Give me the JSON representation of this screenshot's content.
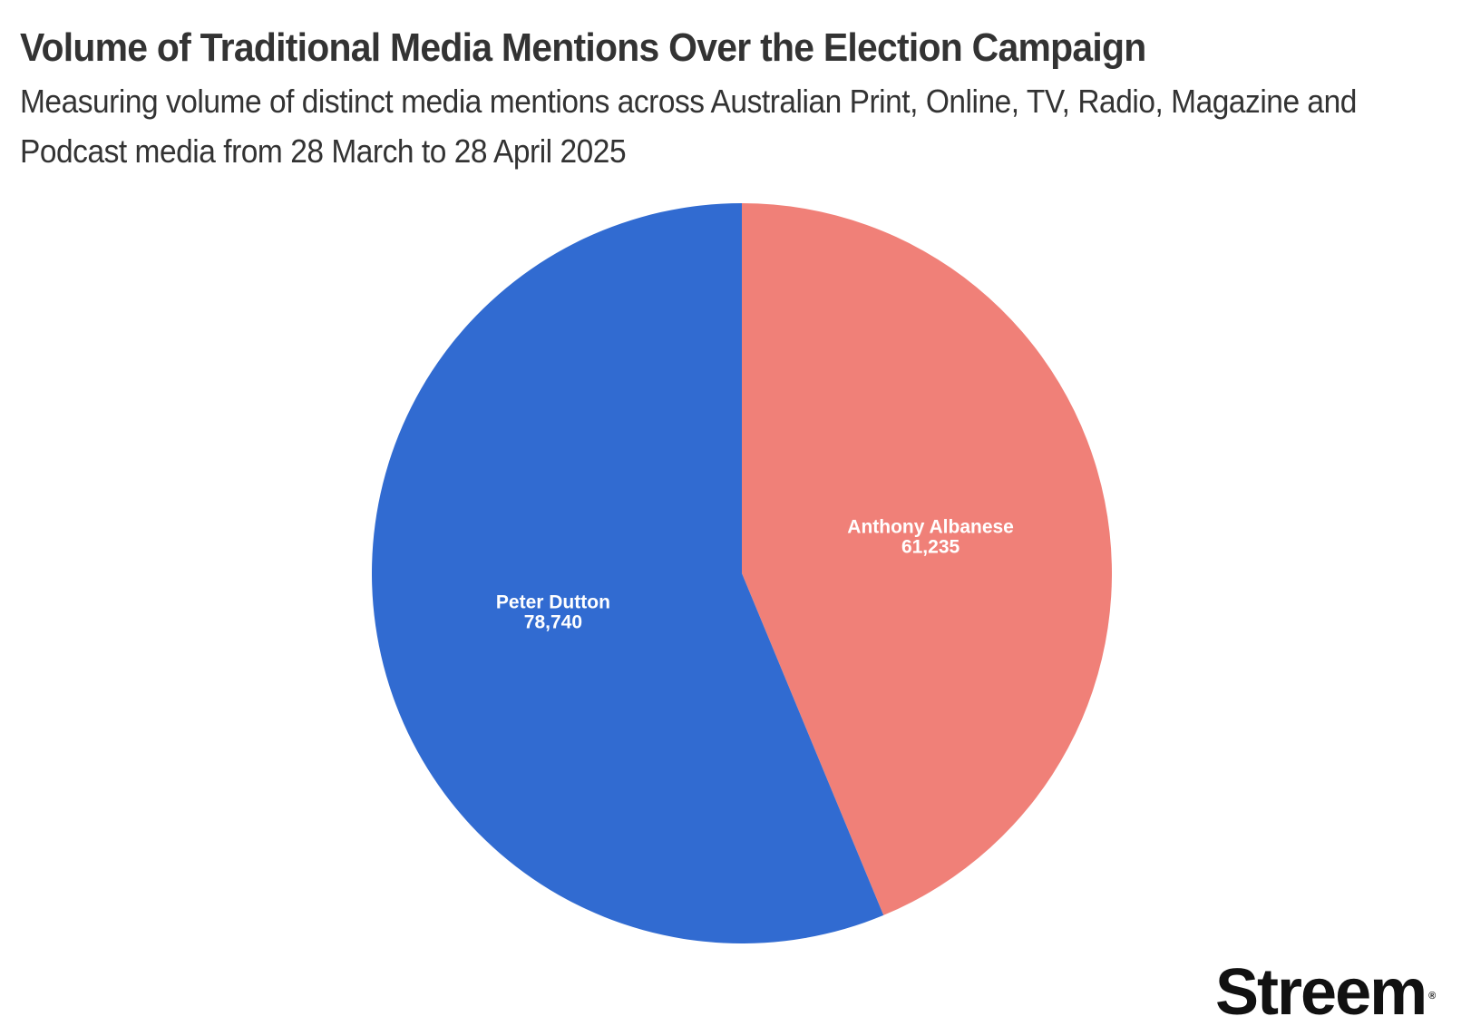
{
  "chart_data": {
    "type": "pie",
    "title": "Volume of Traditional Media Mentions Over the Election Campaign",
    "subtitle": "Measuring volume of distinct media mentions across Australian Print, Online, TV, Radio, Magazine and Podcast media from 28 March to 28 April 2025",
    "slices": [
      {
        "label": "Anthony Albanese",
        "value": 61235,
        "value_label": "61,235",
        "color": "#f08078"
      },
      {
        "label": "Peter Dutton",
        "value": 78740,
        "value_label": "78,740",
        "color": "#316bd1"
      }
    ],
    "start_angle": "12 o'clock",
    "direction": "clockwise",
    "legend": "none"
  },
  "brand": {
    "logo_text": "Streem",
    "registered_mark": "®"
  }
}
